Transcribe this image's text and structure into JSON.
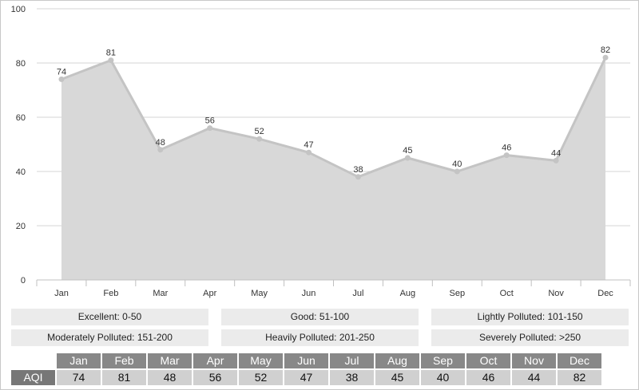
{
  "chart_data": {
    "type": "area",
    "categories": [
      "Jan",
      "Feb",
      "Mar",
      "Apr",
      "May",
      "Jun",
      "Jul",
      "Aug",
      "Sep",
      "Oct",
      "Nov",
      "Dec"
    ],
    "values": [
      74,
      81,
      48,
      56,
      52,
      47,
      38,
      45,
      40,
      46,
      44,
      82
    ],
    "ylim": [
      0,
      100
    ],
    "yticks": [
      0,
      20,
      40,
      60,
      80,
      100
    ],
    "grid": true,
    "data_labels": true,
    "colors": {
      "fill": "#d8d8d8",
      "line": "#c4c4c4",
      "point": "#c4c4c4",
      "grid": "#d6d6d6",
      "axis": "#c0c0c0"
    }
  },
  "legend": [
    [
      "Excellent: 0-50",
      "Good: 51-100",
      "Lightly Polluted: 101-150"
    ],
    [
      "Moderately Polluted: 151-200",
      "Heavily Polluted: 201-250",
      "Severely Polluted: >250"
    ]
  ],
  "table": {
    "row_label": "AQI",
    "months": [
      "Jan",
      "Feb",
      "Mar",
      "Apr",
      "May",
      "Jun",
      "Jul",
      "Aug",
      "Sep",
      "Oct",
      "Nov",
      "Dec"
    ],
    "values": [
      74,
      81,
      48,
      56,
      52,
      47,
      38,
      45,
      40,
      46,
      44,
      82
    ]
  }
}
